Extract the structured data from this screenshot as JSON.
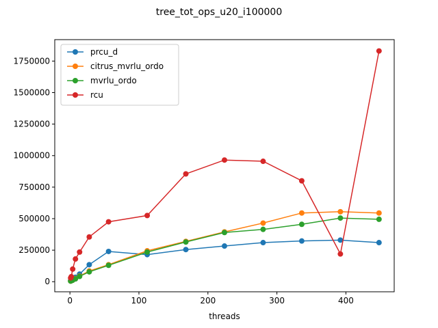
{
  "chart_data": {
    "type": "line",
    "title": "tree_tot_ops_u20_i100000",
    "xlabel": "threads",
    "ylabel": "",
    "xlim": [
      -22,
      470
    ],
    "ylim": [
      -80000,
      1920000
    ],
    "xticks": [
      0,
      100,
      200,
      300,
      400
    ],
    "yticks": [
      0,
      250000,
      500000,
      750000,
      1000000,
      1250000,
      1500000,
      1750000
    ],
    "grid": false,
    "legend_position": "upper-left",
    "series": [
      {
        "name": "prcu_d",
        "color": "#1f77b4",
        "x": [
          1,
          2,
          4,
          8,
          14,
          28,
          56,
          112,
          168,
          224,
          280,
          336,
          392,
          448
        ],
        "y": [
          8000,
          12000,
          20000,
          35000,
          60000,
          135000,
          240000,
          215000,
          255000,
          283000,
          310000,
          323000,
          330000,
          310000
        ]
      },
      {
        "name": "citrus_mvrlu_ordo",
        "color": "#ff7f0e",
        "x": [
          1,
          2,
          4,
          8,
          14,
          28,
          56,
          112,
          168,
          224,
          280,
          336,
          392,
          448
        ],
        "y": [
          5000,
          8000,
          12000,
          25000,
          45000,
          85000,
          135000,
          245000,
          320000,
          395000,
          465000,
          545000,
          555000,
          545000
        ]
      },
      {
        "name": "mvrlu_ordo",
        "color": "#2ca02c",
        "x": [
          1,
          2,
          4,
          8,
          14,
          28,
          56,
          112,
          168,
          224,
          280,
          336,
          392,
          448
        ],
        "y": [
          5000,
          7000,
          12000,
          22000,
          42000,
          78000,
          130000,
          235000,
          315000,
          390000,
          415000,
          455000,
          505000,
          495000
        ]
      },
      {
        "name": "rcu",
        "color": "#d62728",
        "x": [
          1,
          2,
          4,
          8,
          14,
          28,
          56,
          112,
          168,
          224,
          280,
          336,
          392,
          448
        ],
        "y": [
          30000,
          40000,
          100000,
          180000,
          235000,
          355000,
          475000,
          525000,
          855000,
          965000,
          955000,
          800000,
          220000,
          1830000
        ]
      }
    ]
  }
}
